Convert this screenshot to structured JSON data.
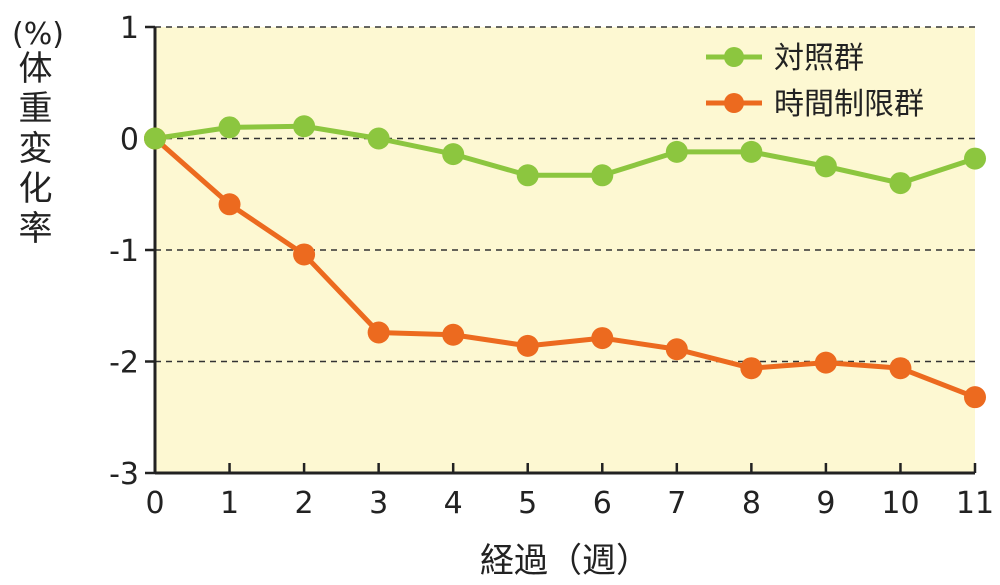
{
  "chart_data": {
    "type": "line",
    "unit_label": "(%)",
    "ylabel": "体重変化率",
    "xlabel": "経過（週）",
    "x": [
      0,
      1,
      2,
      3,
      4,
      5,
      6,
      7,
      8,
      9,
      10,
      11
    ],
    "ylim": [
      -3,
      1
    ],
    "yticks": [
      1,
      0,
      -1,
      -2,
      -3
    ],
    "grid": "horizontal-dashed",
    "legend_position": "top-right",
    "plot_background": "#fdf8d2",
    "series": [
      {
        "name": "対照群",
        "color": "#8cc63f",
        "values": [
          0,
          0.1,
          0.11,
          0,
          -0.14,
          -0.33,
          -0.33,
          -0.12,
          -0.12,
          -0.25,
          -0.4,
          -0.18
        ]
      },
      {
        "name": "時間制限群",
        "color": "#ec6a1f",
        "values": [
          0,
          -0.59,
          -1.04,
          -1.74,
          -1.76,
          -1.86,
          -1.79,
          -1.89,
          -2.06,
          -2.01,
          -2.06,
          -2.32
        ]
      }
    ]
  }
}
